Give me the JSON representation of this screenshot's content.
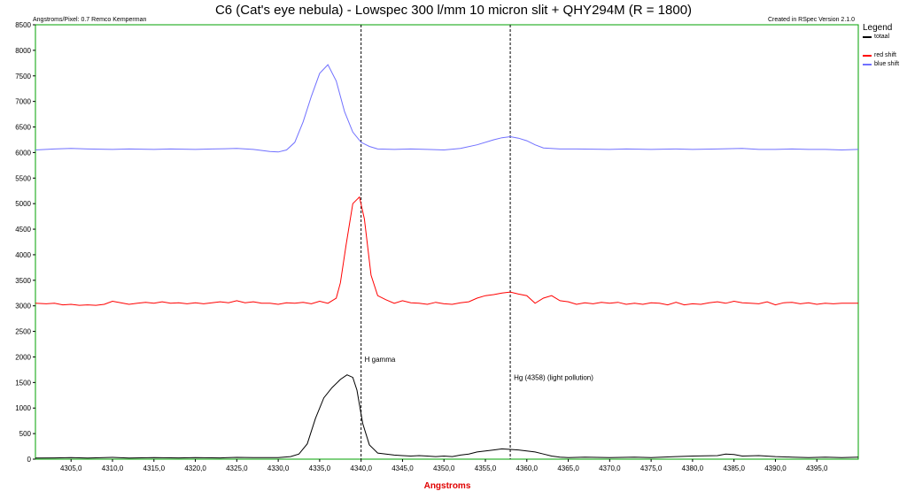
{
  "chart_data": {
    "type": "line",
    "title": "C6 (Cat's eye nebula)  - Lowspec 300 l/mm 10 micron slit + QHY294M (R = 1800)",
    "top_left_note": "Angstroms/Pixel: 0.7 Remco Kemperman",
    "top_right_note": "Created in RSpec Version 2.1.0",
    "xlabel": "Angstroms",
    "ylabel": "",
    "xlim": [
      4300.7,
      4400.0
    ],
    "ylim": [
      0,
      8500
    ],
    "x_ticks": [
      4305.0,
      4310.0,
      4315.0,
      4320.0,
      4325.0,
      4330.0,
      4335.0,
      4340.0,
      4345.0,
      4350.0,
      4355.0,
      4360.0,
      4365.0,
      4370.0,
      4375.0,
      4380.0,
      4385.0,
      4390.0,
      4395.0
    ],
    "x_tick_labels": [
      "4305,0",
      "4310,0",
      "4315,0",
      "4320,0",
      "4325,0",
      "4330,0",
      "4335,0",
      "4340,0",
      "4345,0",
      "4350,0",
      "4355,0",
      "4360,0",
      "4365,0",
      "4370,0",
      "4375,0",
      "4380,0",
      "4385,0",
      "4390,0",
      "4395,0"
    ],
    "y_ticks": [
      0,
      500,
      1000,
      1500,
      2000,
      2500,
      3000,
      3500,
      4000,
      4500,
      5000,
      5500,
      6000,
      6500,
      7000,
      7500,
      8000,
      8500
    ],
    "y_tick_labels": [
      "0",
      "500",
      "1000",
      "1500",
      "2000",
      "2500",
      "3000",
      "3500",
      "4000",
      "4500",
      "5000",
      "5500",
      "6000",
      "6500",
      "7000",
      "7500",
      "8000",
      "8500"
    ],
    "grid": false,
    "legend_title": "Legend",
    "legend_placement": "right",
    "markers": [
      {
        "x": 4340.0,
        "label": "H gamma",
        "label_y": 1900
      },
      {
        "x": 4358.0,
        "label": "Hg (4358) (light pollution)",
        "label_y": 1550
      }
    ],
    "series": [
      {
        "name": "totaal",
        "color": "#000000",
        "points": [
          [
            4300.7,
            20
          ],
          [
            4303,
            25
          ],
          [
            4305,
            30
          ],
          [
            4307,
            20
          ],
          [
            4310,
            35
          ],
          [
            4312,
            20
          ],
          [
            4315,
            30
          ],
          [
            4318,
            25
          ],
          [
            4320,
            30
          ],
          [
            4323,
            25
          ],
          [
            4325,
            35
          ],
          [
            4327,
            30
          ],
          [
            4330,
            30
          ],
          [
            4331.5,
            50
          ],
          [
            4332.5,
            100
          ],
          [
            4333.5,
            300
          ],
          [
            4334.5,
            800
          ],
          [
            4335.5,
            1200
          ],
          [
            4336.5,
            1400
          ],
          [
            4337.5,
            1560
          ],
          [
            4338.3,
            1650
          ],
          [
            4339,
            1600
          ],
          [
            4339.5,
            1350
          ],
          [
            4340.2,
            700
          ],
          [
            4341,
            280
          ],
          [
            4342,
            120
          ],
          [
            4343,
            100
          ],
          [
            4344,
            80
          ],
          [
            4345,
            70
          ],
          [
            4346,
            60
          ],
          [
            4347,
            70
          ],
          [
            4348,
            60
          ],
          [
            4349,
            50
          ],
          [
            4350,
            60
          ],
          [
            4351,
            50
          ],
          [
            4352,
            80
          ],
          [
            4353,
            100
          ],
          [
            4354,
            140
          ],
          [
            4355,
            160
          ],
          [
            4356,
            180
          ],
          [
            4357,
            200
          ],
          [
            4358,
            190
          ],
          [
            4359,
            180
          ],
          [
            4360,
            160
          ],
          [
            4361,
            140
          ],
          [
            4362,
            100
          ],
          [
            4363,
            60
          ],
          [
            4364,
            40
          ],
          [
            4365,
            30
          ],
          [
            4367,
            40
          ],
          [
            4370,
            30
          ],
          [
            4373,
            40
          ],
          [
            4375,
            30
          ],
          [
            4378,
            50
          ],
          [
            4380,
            60
          ],
          [
            4383,
            70
          ],
          [
            4384,
            100
          ],
          [
            4385,
            90
          ],
          [
            4386,
            60
          ],
          [
            4388,
            70
          ],
          [
            4390,
            50
          ],
          [
            4392,
            40
          ],
          [
            4394,
            30
          ],
          [
            4396,
            40
          ],
          [
            4398,
            30
          ],
          [
            4400,
            40
          ]
        ]
      },
      {
        "name": "red shift",
        "color": "#ff0000",
        "points": [
          [
            4300.7,
            3050
          ],
          [
            4302,
            3040
          ],
          [
            4303,
            3050
          ],
          [
            4304,
            3020
          ],
          [
            4305,
            3030
          ],
          [
            4306,
            3010
          ],
          [
            4307,
            3020
          ],
          [
            4308,
            3010
          ],
          [
            4309,
            3030
          ],
          [
            4310,
            3090
          ],
          [
            4311,
            3060
          ],
          [
            4312,
            3030
          ],
          [
            4313,
            3050
          ],
          [
            4314,
            3070
          ],
          [
            4315,
            3050
          ],
          [
            4316,
            3080
          ],
          [
            4317,
            3050
          ],
          [
            4318,
            3060
          ],
          [
            4319,
            3040
          ],
          [
            4320,
            3060
          ],
          [
            4321,
            3040
          ],
          [
            4322,
            3060
          ],
          [
            4323,
            3080
          ],
          [
            4324,
            3060
          ],
          [
            4325,
            3100
          ],
          [
            4326,
            3060
          ],
          [
            4327,
            3080
          ],
          [
            4328,
            3050
          ],
          [
            4329,
            3050
          ],
          [
            4330,
            3030
          ],
          [
            4331,
            3060
          ],
          [
            4332,
            3050
          ],
          [
            4333,
            3070
          ],
          [
            4334,
            3040
          ],
          [
            4335,
            3090
          ],
          [
            4336,
            3050
          ],
          [
            4337,
            3150
          ],
          [
            4337.5,
            3450
          ],
          [
            4338.2,
            4200
          ],
          [
            4339,
            5000
          ],
          [
            4339.8,
            5130
          ],
          [
            4340.4,
            4700
          ],
          [
            4341.2,
            3600
          ],
          [
            4342,
            3200
          ],
          [
            4343,
            3120
          ],
          [
            4344,
            3050
          ],
          [
            4345,
            3100
          ],
          [
            4346,
            3060
          ],
          [
            4347,
            3050
          ],
          [
            4348,
            3030
          ],
          [
            4349,
            3070
          ],
          [
            4350,
            3040
          ],
          [
            4351,
            3030
          ],
          [
            4352,
            3060
          ],
          [
            4353,
            3080
          ],
          [
            4354,
            3150
          ],
          [
            4355,
            3200
          ],
          [
            4356,
            3220
          ],
          [
            4357,
            3250
          ],
          [
            4358,
            3270
          ],
          [
            4359,
            3230
          ],
          [
            4360,
            3200
          ],
          [
            4361,
            3050
          ],
          [
            4362,
            3150
          ],
          [
            4363,
            3200
          ],
          [
            4364,
            3100
          ],
          [
            4365,
            3080
          ],
          [
            4366,
            3030
          ],
          [
            4367,
            3060
          ],
          [
            4368,
            3040
          ],
          [
            4369,
            3070
          ],
          [
            4370,
            3050
          ],
          [
            4371,
            3070
          ],
          [
            4372,
            3030
          ],
          [
            4373,
            3050
          ],
          [
            4374,
            3030
          ],
          [
            4375,
            3060
          ],
          [
            4376,
            3050
          ],
          [
            4377,
            3020
          ],
          [
            4378,
            3070
          ],
          [
            4379,
            3020
          ],
          [
            4380,
            3040
          ],
          [
            4381,
            3030
          ],
          [
            4382,
            3060
          ],
          [
            4383,
            3080
          ],
          [
            4384,
            3050
          ],
          [
            4385,
            3090
          ],
          [
            4386,
            3060
          ],
          [
            4387,
            3050
          ],
          [
            4388,
            3040
          ],
          [
            4389,
            3080
          ],
          [
            4390,
            3020
          ],
          [
            4391,
            3060
          ],
          [
            4392,
            3070
          ],
          [
            4393,
            3040
          ],
          [
            4394,
            3060
          ],
          [
            4395,
            3030
          ],
          [
            4396,
            3050
          ],
          [
            4397,
            3040
          ],
          [
            4398,
            3050
          ],
          [
            4400,
            3050
          ]
        ]
      },
      {
        "name": "blue shift",
        "color": "#7070ff",
        "points": [
          [
            4300.7,
            6050
          ],
          [
            4303,
            6070
          ],
          [
            4305,
            6080
          ],
          [
            4307,
            6070
          ],
          [
            4310,
            6060
          ],
          [
            4312,
            6070
          ],
          [
            4315,
            6060
          ],
          [
            4317,
            6070
          ],
          [
            4320,
            6060
          ],
          [
            4322,
            6070
          ],
          [
            4325,
            6080
          ],
          [
            4327,
            6060
          ],
          [
            4329,
            6020
          ],
          [
            4330,
            6010
          ],
          [
            4331,
            6050
          ],
          [
            4332,
            6200
          ],
          [
            4333,
            6600
          ],
          [
            4334,
            7100
          ],
          [
            4335,
            7550
          ],
          [
            4336,
            7720
          ],
          [
            4337,
            7400
          ],
          [
            4338,
            6800
          ],
          [
            4339,
            6400
          ],
          [
            4340,
            6200
          ],
          [
            4341,
            6120
          ],
          [
            4342,
            6070
          ],
          [
            4344,
            6060
          ],
          [
            4346,
            6070
          ],
          [
            4348,
            6060
          ],
          [
            4350,
            6050
          ],
          [
            4352,
            6080
          ],
          [
            4354,
            6150
          ],
          [
            4356,
            6250
          ],
          [
            4357,
            6290
          ],
          [
            4358,
            6310
          ],
          [
            4359,
            6280
          ],
          [
            4360,
            6230
          ],
          [
            4361,
            6150
          ],
          [
            4362,
            6090
          ],
          [
            4364,
            6070
          ],
          [
            4366,
            6070
          ],
          [
            4370,
            6060
          ],
          [
            4372,
            6070
          ],
          [
            4375,
            6060
          ],
          [
            4378,
            6070
          ],
          [
            4380,
            6060
          ],
          [
            4383,
            6070
          ],
          [
            4386,
            6080
          ],
          [
            4388,
            6060
          ],
          [
            4390,
            6060
          ],
          [
            4392,
            6070
          ],
          [
            4394,
            6060
          ],
          [
            4396,
            6060
          ],
          [
            4398,
            6050
          ],
          [
            4400,
            6060
          ]
        ]
      }
    ]
  }
}
